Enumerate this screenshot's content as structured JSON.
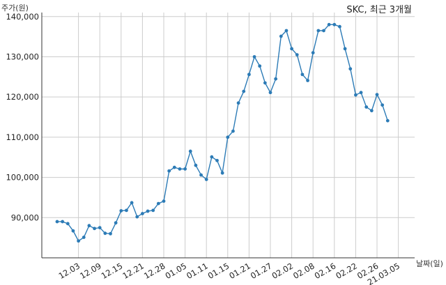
{
  "chart_data": {
    "type": "line",
    "title": "SKC, 최근 3개월",
    "ylabel": "주가(원)",
    "xlabel": "날짜(일)",
    "ylim": [
      80000,
      141000
    ],
    "yticks": [
      90000,
      100000,
      110000,
      120000,
      130000,
      140000
    ],
    "ytick_labels": [
      "90,000",
      "100,000",
      "110,000",
      "120,000",
      "130,000",
      "140,000"
    ],
    "xtick_labels": [
      "12.03",
      "12.09",
      "12.15",
      "12.21",
      "12.28",
      "01.05",
      "01.11",
      "01.15",
      "01.21",
      "01.27",
      "02.02",
      "02.08",
      "02.16",
      "02.22",
      "02.26",
      "21.03.05"
    ],
    "xtick_index": [
      4,
      8,
      12,
      16,
      20,
      24,
      28,
      32,
      36,
      40,
      44,
      48,
      52,
      56,
      60,
      64
    ],
    "grid": true,
    "color": "#2c7bb6",
    "series": [
      {
        "values": [
          89000,
          89000,
          88500,
          86700,
          84200,
          85100,
          88000,
          87300,
          87500,
          86100,
          86000,
          88700,
          91700,
          91800,
          93700,
          90200,
          91000,
          91600,
          91800,
          93500,
          94100,
          101600,
          102500,
          102100,
          102100,
          106500,
          103000,
          100600,
          99500,
          105100,
          104200,
          101100,
          110000,
          111500,
          118500,
          121400,
          125600,
          130000,
          127700,
          123500,
          121100,
          124500,
          135100,
          136500,
          132000,
          130500,
          125600,
          124100,
          131000,
          136500,
          136500,
          138000,
          138000,
          137500,
          132000,
          127000,
          120500,
          121100,
          117500,
          116600,
          120600,
          118000,
          114100
        ]
      }
    ]
  }
}
